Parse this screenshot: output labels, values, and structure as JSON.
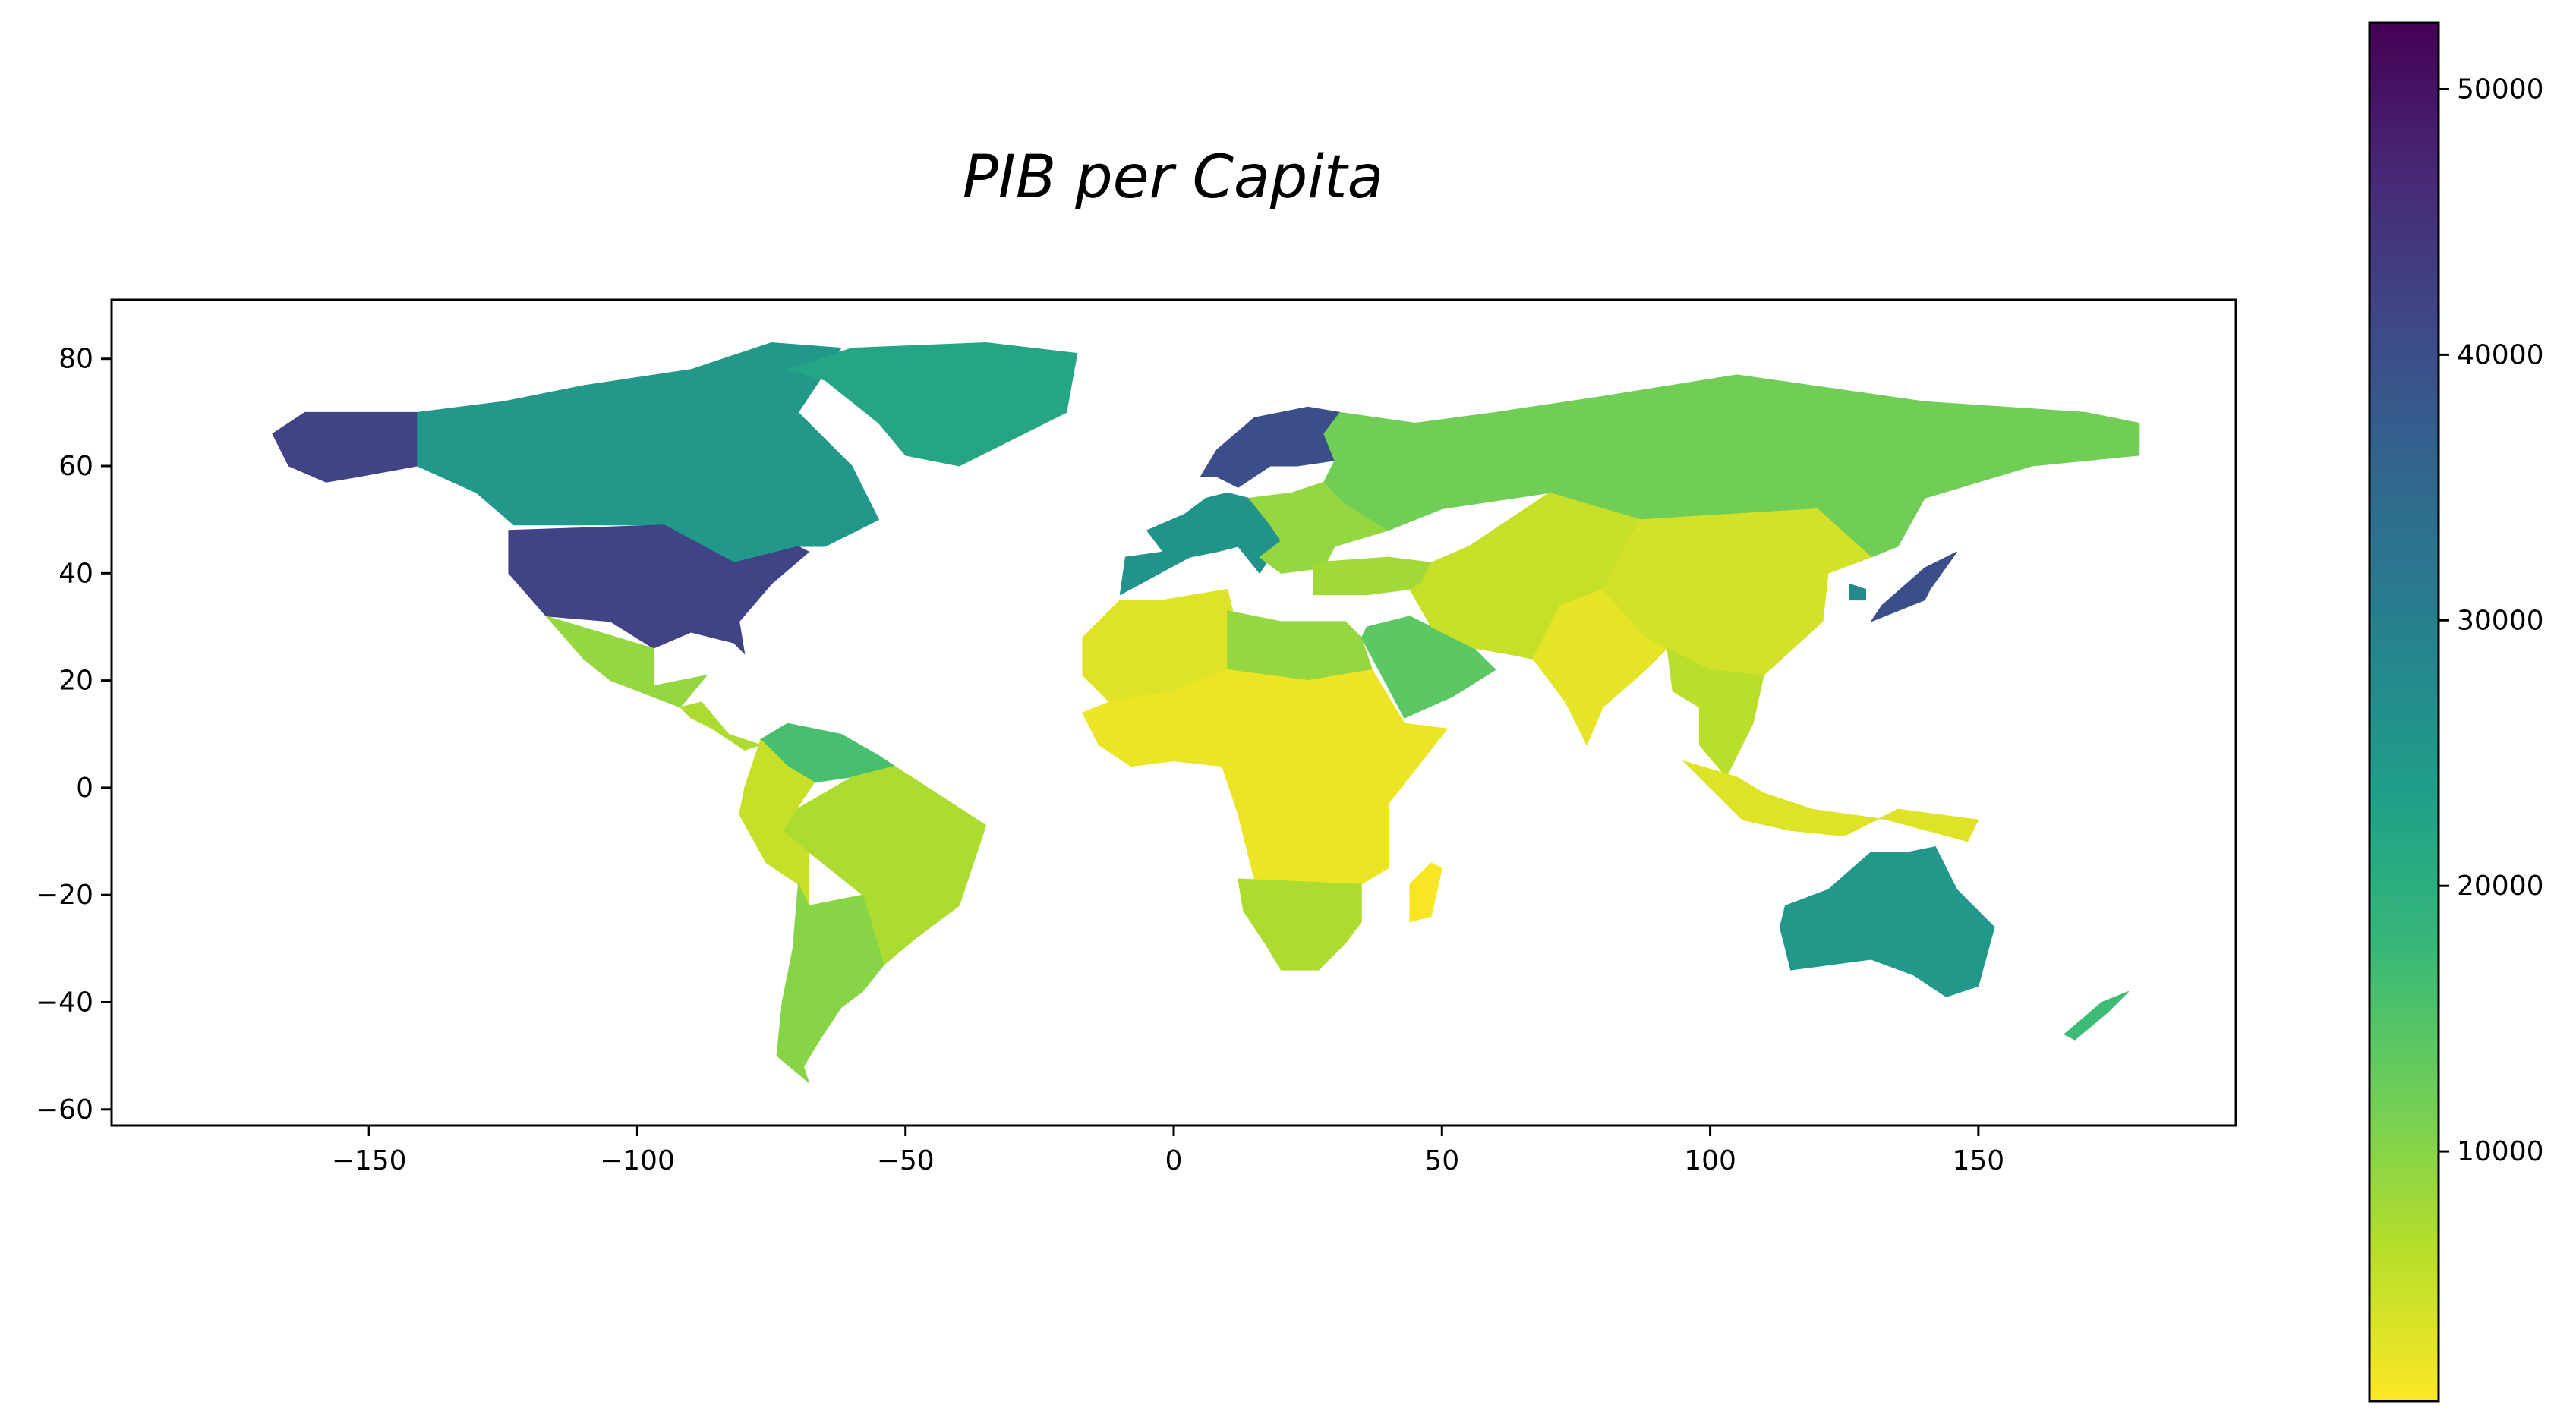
{
  "title": "PIB per Capita",
  "map": {
    "x_ticks": [
      -150,
      -100,
      -50,
      0,
      50,
      100,
      150
    ],
    "x_tick_labels": [
      "−150",
      "−100",
      "−50",
      "0",
      "50",
      "100",
      "150"
    ],
    "y_ticks": [
      80,
      60,
      40,
      20,
      0,
      -20,
      -40,
      -60
    ],
    "y_tick_labels": [
      "80",
      "60",
      "40",
      "20",
      "0",
      "−20",
      "−40",
      "−60"
    ],
    "xlim": [
      -198,
      198
    ],
    "ylim": [
      -63,
      91
    ]
  },
  "colorbar": {
    "colormap": "viridis_r",
    "range": [
      600,
      52500
    ],
    "ticks": [
      10000,
      20000,
      30000,
      40000,
      50000
    ],
    "tick_labels": [
      "10000",
      "20000",
      "30000",
      "40000",
      "50000"
    ],
    "colors": [
      "#fde725",
      "#b5de2b",
      "#6ece58",
      "#35b779",
      "#1f9e89",
      "#26828e",
      "#31688e",
      "#3e4989",
      "#482878",
      "#440154"
    ]
  },
  "chart_data": {
    "type": "heatmap",
    "title": "PIB per Capita",
    "xlim": [
      -198,
      198
    ],
    "ylim": [
      -63,
      91
    ],
    "regions": [
      {
        "region": "Alaska (USA)",
        "value": 42000
      },
      {
        "region": "Canada",
        "value": 25000
      },
      {
        "region": "Greenland",
        "value": 22000
      },
      {
        "region": "USA",
        "value": 42000
      },
      {
        "region": "Mexico",
        "value": 9000
      },
      {
        "region": "Central America",
        "value": 7000
      },
      {
        "region": "Venezuela / Guianas",
        "value": 16000
      },
      {
        "region": "Brazil",
        "value": 7000
      },
      {
        "region": "Andean countries",
        "value": 5000
      },
      {
        "region": "Argentina / Chile",
        "value": 10000
      },
      {
        "region": "Western Europe",
        "value": 26000
      },
      {
        "region": "Scandinavia",
        "value": 40000
      },
      {
        "region": "Eastern Europe",
        "value": 9000
      },
      {
        "region": "Russia",
        "value": 12000
      },
      {
        "region": "Turkey / Caucasus",
        "value": 8000
      },
      {
        "region": "North Africa",
        "value": 3000
      },
      {
        "region": "Libya / Egypt",
        "value": 9000
      },
      {
        "region": "Sub-Saharan Africa",
        "value": 2000
      },
      {
        "region": "Southern Africa",
        "value": 7000
      },
      {
        "region": "Madagascar",
        "value": 1000
      },
      {
        "region": "Arabian Peninsula",
        "value": 14000
      },
      {
        "region": "Central Asia",
        "value": 5000
      },
      {
        "region": "India",
        "value": 2500
      },
      {
        "region": "China",
        "value": 4000
      },
      {
        "region": "Japan",
        "value": 40000
      },
      {
        "region": "South Korea",
        "value": 28000
      },
      {
        "region": "Southeast Asia",
        "value": 6000
      },
      {
        "region": "Indonesia / PNG",
        "value": 3000
      },
      {
        "region": "Australia",
        "value": 25000
      },
      {
        "region": "New Zealand",
        "value": 17000
      }
    ]
  }
}
